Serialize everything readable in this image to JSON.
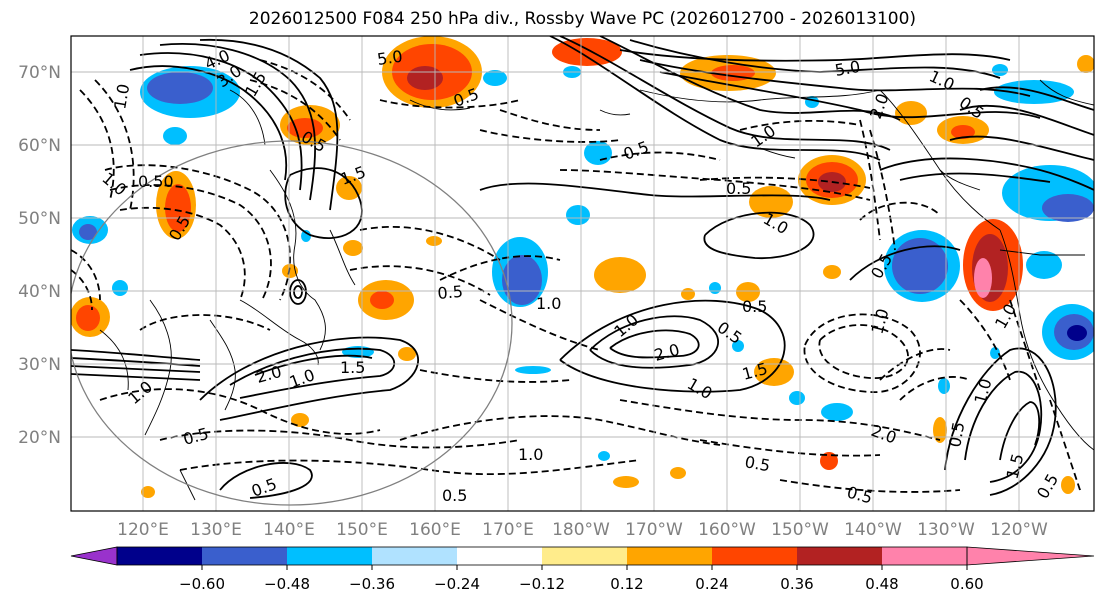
{
  "title": "2026012500 F084 250 hPa div., Rossby Wave PC (2026012700 - 2026013100)",
  "axes": {
    "lat_labels": [
      "70°N",
      "60°N",
      "50°N",
      "40°N",
      "30°N",
      "20°N"
    ],
    "lon_labels": [
      "120°E",
      "130°E",
      "140°E",
      "150°E",
      "160°E",
      "170°E",
      "180°W",
      "170°W",
      "160°W",
      "150°W",
      "140°W",
      "130°W",
      "120°W"
    ],
    "tick_color": "#808080"
  },
  "colorbar": {
    "tick_labels": [
      "−0.60",
      "−0.48",
      "−0.36",
      "−0.24",
      "−0.12",
      "0.12",
      "0.24",
      "0.36",
      "0.48",
      "0.60"
    ],
    "colors": [
      "#9932cc",
      "#00008b",
      "#3a5fcd",
      "#00bfff",
      "#b0e2ff",
      "#ffffff",
      "#ffec8b",
      "#ffa500",
      "#ff4500",
      "#b22222",
      "#ff82ab"
    ]
  },
  "contour_labels": [
    {
      "text": "5.0"
    },
    {
      "text": "4.0"
    },
    {
      "text": "3.0"
    },
    {
      "text": "1.5"
    },
    {
      "text": "1.0"
    },
    {
      "text": "0.5"
    },
    {
      "text": "1.0"
    },
    {
      "text": "0.50"
    },
    {
      "text": "0.5"
    },
    {
      "text": "1.5"
    },
    {
      "text": "0.5"
    },
    {
      "text": "1.5"
    },
    {
      "text": "2.0"
    },
    {
      "text": "1.0"
    },
    {
      "text": "0.5"
    },
    {
      "text": "0.5"
    },
    {
      "text": "0.5"
    },
    {
      "text": "1.0"
    },
    {
      "text": "1.0"
    },
    {
      "text": "2.0"
    },
    {
      "text": "1.5"
    },
    {
      "text": "1.0"
    },
    {
      "text": "0.5"
    },
    {
      "text": "1.0"
    },
    {
      "text": "0.5"
    },
    {
      "text": "0.5"
    },
    {
      "text": "1.0"
    },
    {
      "text": "0.5"
    },
    {
      "text": "1.0"
    },
    {
      "text": "5.0"
    },
    {
      "text": "2.0"
    },
    {
      "text": "1.0"
    },
    {
      "text": "0.5"
    },
    {
      "text": "0.5"
    },
    {
      "text": "0.5"
    },
    {
      "text": "1.0"
    },
    {
      "text": "2.0"
    },
    {
      "text": "0.5"
    },
    {
      "text": "1.0"
    },
    {
      "text": "1.5"
    },
    {
      "text": "1.0"
    },
    {
      "text": "0.5"
    },
    {
      "text": "0.5"
    },
    {
      "text": "1.0"
    },
    {
      "text": "0.5"
    }
  ]
}
